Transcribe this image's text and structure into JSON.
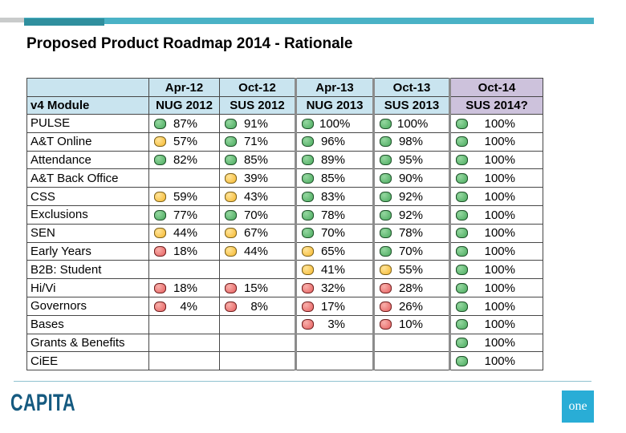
{
  "slide": {
    "title": "Proposed Product Roadmap 2014 - Rationale"
  },
  "table": {
    "corner_label": "v4 Module",
    "columns": [
      {
        "period": "Apr-12",
        "survey": "NUG 2012",
        "highlight": false
      },
      {
        "period": "Oct-12",
        "survey": "SUS 2012",
        "highlight": false
      },
      {
        "period": "Apr-13",
        "survey": "NUG 2013",
        "highlight": false
      },
      {
        "period": "Oct-13",
        "survey": "SUS 2013",
        "highlight": false
      },
      {
        "period": "Oct-14",
        "survey": "SUS 2014?",
        "highlight": true
      }
    ],
    "rows": [
      {
        "module": "PULSE",
        "cells": [
          {
            "status": "green",
            "value": "87%"
          },
          {
            "status": "green",
            "value": "91%"
          },
          {
            "status": "green",
            "value": "100%"
          },
          {
            "status": "green",
            "value": "100%"
          },
          {
            "status": "green",
            "value": "100%"
          }
        ]
      },
      {
        "module": "A&T Online",
        "cells": [
          {
            "status": "amber",
            "value": "57%"
          },
          {
            "status": "green",
            "value": "71%"
          },
          {
            "status": "green",
            "value": "96%"
          },
          {
            "status": "green",
            "value": "98%"
          },
          {
            "status": "green",
            "value": "100%"
          }
        ]
      },
      {
        "module": "Attendance",
        "cells": [
          {
            "status": "green",
            "value": "82%"
          },
          {
            "status": "green",
            "value": "85%"
          },
          {
            "status": "green",
            "value": "89%"
          },
          {
            "status": "green",
            "value": "95%"
          },
          {
            "status": "green",
            "value": "100%"
          }
        ]
      },
      {
        "module": "A&T Back Office",
        "cells": [
          {
            "status": null,
            "value": ""
          },
          {
            "status": "amber",
            "value": "39%"
          },
          {
            "status": "green",
            "value": "85%"
          },
          {
            "status": "green",
            "value": "90%"
          },
          {
            "status": "green",
            "value": "100%"
          }
        ]
      },
      {
        "module": "CSS",
        "cells": [
          {
            "status": "amber",
            "value": "59%"
          },
          {
            "status": "amber",
            "value": "43%"
          },
          {
            "status": "green",
            "value": "83%"
          },
          {
            "status": "green",
            "value": "92%"
          },
          {
            "status": "green",
            "value": "100%"
          }
        ]
      },
      {
        "module": "Exclusions",
        "cells": [
          {
            "status": "green",
            "value": "77%"
          },
          {
            "status": "green",
            "value": "70%"
          },
          {
            "status": "green",
            "value": "78%"
          },
          {
            "status": "green",
            "value": "92%"
          },
          {
            "status": "green",
            "value": "100%"
          }
        ]
      },
      {
        "module": "SEN",
        "cells": [
          {
            "status": "amber",
            "value": "44%"
          },
          {
            "status": "amber",
            "value": "67%"
          },
          {
            "status": "green",
            "value": "70%"
          },
          {
            "status": "green",
            "value": "78%"
          },
          {
            "status": "green",
            "value": "100%"
          }
        ]
      },
      {
        "module": "Early Years",
        "cells": [
          {
            "status": "red",
            "value": "18%"
          },
          {
            "status": "amber",
            "value": "44%"
          },
          {
            "status": "amber",
            "value": "65%"
          },
          {
            "status": "green",
            "value": "70%"
          },
          {
            "status": "green",
            "value": "100%"
          }
        ]
      },
      {
        "module": "B2B: Student",
        "cells": [
          {
            "status": null,
            "value": ""
          },
          {
            "status": null,
            "value": ""
          },
          {
            "status": "amber",
            "value": "41%"
          },
          {
            "status": "amber",
            "value": "55%"
          },
          {
            "status": "green",
            "value": "100%"
          }
        ]
      },
      {
        "module": "Hi/Vi",
        "cells": [
          {
            "status": "red",
            "value": "18%"
          },
          {
            "status": "red",
            "value": "15%"
          },
          {
            "status": "red",
            "value": "32%"
          },
          {
            "status": "red",
            "value": "28%"
          },
          {
            "status": "green",
            "value": "100%"
          }
        ]
      },
      {
        "module": "Governors",
        "cells": [
          {
            "status": "red",
            "value": "4%"
          },
          {
            "status": "red",
            "value": "8%"
          },
          {
            "status": "red",
            "value": "17%"
          },
          {
            "status": "red",
            "value": "26%"
          },
          {
            "status": "green",
            "value": "100%"
          }
        ]
      },
      {
        "module": "Bases",
        "cells": [
          {
            "status": null,
            "value": ""
          },
          {
            "status": null,
            "value": ""
          },
          {
            "status": "red",
            "value": "3%"
          },
          {
            "status": "red",
            "value": "10%"
          },
          {
            "status": "green",
            "value": "100%"
          }
        ]
      },
      {
        "module": "Grants & Benefits",
        "cells": [
          {
            "status": null,
            "value": ""
          },
          {
            "status": null,
            "value": ""
          },
          {
            "status": null,
            "value": ""
          },
          {
            "status": null,
            "value": ""
          },
          {
            "status": "green",
            "value": "100%"
          }
        ]
      },
      {
        "module": "CiEE",
        "cells": [
          {
            "status": null,
            "value": ""
          },
          {
            "status": null,
            "value": ""
          },
          {
            "status": null,
            "value": ""
          },
          {
            "status": null,
            "value": ""
          },
          {
            "status": "green",
            "value": "100%"
          }
        ]
      }
    ]
  },
  "status_colors": {
    "green": "#4aab5e",
    "amber": "#f5b82e",
    "red": "#e66060"
  },
  "accent_colors": {
    "cyan_bar": "#4ab2c6",
    "teal_bar": "#2f8f9e",
    "header_blue": "#c9e4ef",
    "header_purple": "#cdc2dc",
    "capita_blue": "#155a80",
    "one_cyan": "#29add6"
  },
  "footer": {
    "brand": "CAPITA",
    "product_logo": "one"
  }
}
